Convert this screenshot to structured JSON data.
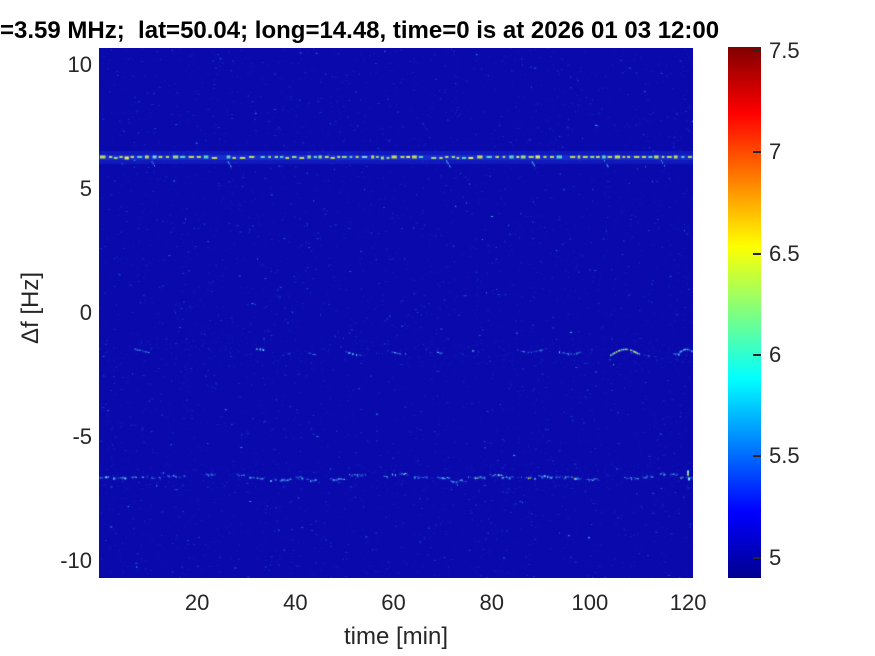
{
  "figure": {
    "title": "=3.59 MHz;  lat=50.04; long=14.48, time=0 is at 2026 01 03 12:00",
    "background_color": "#ffffff",
    "title_color": "#000000",
    "axis_text_color": "#262626"
  },
  "chart_data": {
    "type": "heatmap",
    "title": "=3.59 MHz;  lat=50.04; long=14.48, time=0 is at 2026 01 03 12:00",
    "xlabel": "time [min]",
    "ylabel": "Δf [Hz]",
    "x_tick_labels": [
      "20",
      "40",
      "60",
      "80",
      "100",
      "120"
    ],
    "x_tick_values": [
      20,
      40,
      60,
      80,
      100,
      120
    ],
    "y_tick_labels": [
      "10",
      "5",
      "0",
      "-5",
      "-10"
    ],
    "y_tick_values": [
      10,
      5,
      0,
      -5,
      -10
    ],
    "xlim": [
      0,
      121
    ],
    "ylim": [
      -10.7,
      10.7
    ],
    "grid": false,
    "colormap": "jet",
    "color_range": [
      4.9,
      7.52
    ],
    "colorbar": {
      "position": "right",
      "tick_labels": [
        "5",
        "5.5",
        "6",
        "6.5",
        "7",
        "7.5"
      ],
      "tick_values": [
        5,
        5.5,
        6,
        6.5,
        7,
        7.5
      ]
    },
    "background_noise_level": 5.0,
    "traces": [
      {
        "name": "strong dashed Doppler line",
        "freq_hz": 6.3,
        "typical_level": 6.6,
        "style": "continuous dashed, yellow-green/cyan speckled, spans full 0-121 min"
      },
      {
        "name": "faint intermittent Doppler trace",
        "freq_hz": -1.6,
        "typical_level": 5.6,
        "style": "intermittent blue-cyan speckle segments, denser after ~55 min, occasional yellow-green flares"
      },
      {
        "name": "speckled wavy Doppler trace",
        "freq_hz": -6.6,
        "typical_level": 5.9,
        "style": "quasi-continuous speckled wavy line, brightest cluster near 50-85 min with yellow-green spots"
      }
    ]
  }
}
